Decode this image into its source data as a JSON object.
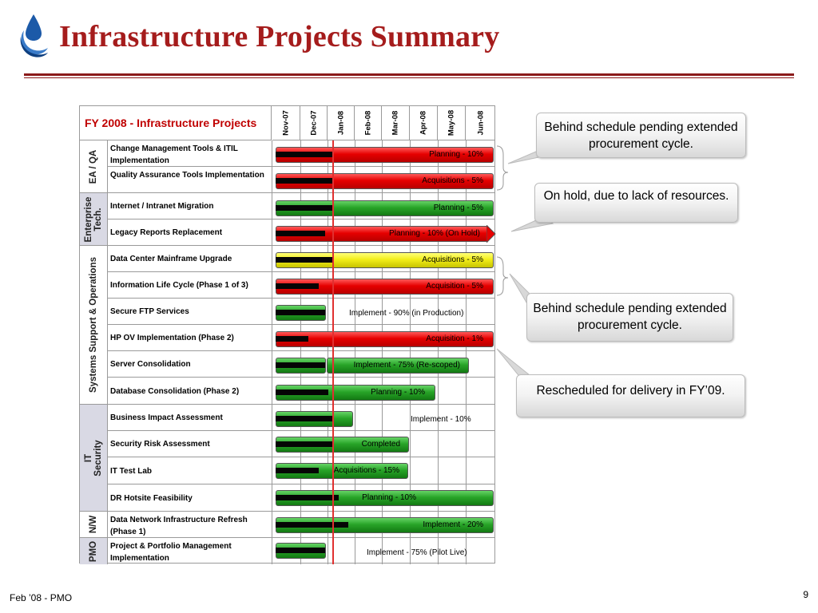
{
  "title": "Infrastructure Projects Summary",
  "table_title": "FY 2008 - Infrastructure Projects",
  "months": [
    "Nov-07",
    "Dec-07",
    "Jan-08",
    "Feb-08",
    "Mar-08",
    "Apr-08",
    "May-08",
    "Jun-08"
  ],
  "groups": [
    {
      "label": "EA / QA"
    },
    {
      "label": "Enterprise\nTech."
    },
    {
      "label": "Systems Support & Operations"
    },
    {
      "label": "IT\nSecurity"
    },
    {
      "label": "N/W"
    },
    {
      "label": "PMO"
    }
  ],
  "projects": [
    {
      "name": "Change Management Tools & ITIL Implementation",
      "status": "Planning - 10%",
      "color": "red"
    },
    {
      "name": "Quality Assurance Tools Implementation",
      "status": "Acquisitions - 5%",
      "color": "red"
    },
    {
      "name": "Internet / Intranet Migration",
      "status": "Planning - 5%",
      "color": "green"
    },
    {
      "name": "Legacy Reports Replacement",
      "status": "Planning - 10% (On Hold)",
      "color": "red"
    },
    {
      "name": "Data Center Mainframe Upgrade",
      "status": "Acquisitions - 5%",
      "color": "yellow"
    },
    {
      "name": "Information Life Cycle (Phase 1 of 3)",
      "status": "Acquisition - 5%",
      "color": "red"
    },
    {
      "name": "Secure FTP Services",
      "status": "Implement - 90% (in Production)",
      "color": "green"
    },
    {
      "name": "HP OV Implementation (Phase 2)",
      "status": "Acquisition - 1%",
      "color": "red"
    },
    {
      "name": "Server Consolidation",
      "status": "Implement - 75% (Re-scoped)",
      "color": "green"
    },
    {
      "name": "Database Consolidation (Phase 2)",
      "status": "Planning - 10%",
      "color": "green"
    },
    {
      "name": "Business Impact Assessment",
      "status": "Implement - 10%",
      "color": "green"
    },
    {
      "name": "Security Risk Assessment",
      "status": "Completed",
      "color": "green"
    },
    {
      "name": "IT Test Lab",
      "status": "Acquisitions - 15%",
      "color": "green"
    },
    {
      "name": "DR Hotsite Feasibility",
      "status": "Planning - 10%",
      "color": "green"
    },
    {
      "name": "Data Network Infrastructure Refresh (Phase 1)",
      "status": "Implement - 20%",
      "color": "green"
    },
    {
      "name": "Project & Portfolio Management Implementation",
      "status": "Implement - 75% (Pilot Live)",
      "color": "green"
    }
  ],
  "callouts": [
    {
      "text": "Behind schedule pending extended procurement cycle."
    },
    {
      "text": "On hold, due to lack of resources."
    },
    {
      "text": "Behind schedule pending extended procurement cycle."
    },
    {
      "text": "Rescheduled for delivery in FY’09."
    }
  ],
  "colors": {
    "title": "#a51c1c",
    "table_title": "#c00000",
    "red_bar": "#e60000",
    "green_bar": "#28a428",
    "yellow_bar": "#f2ee1a",
    "today_line": "#e03030"
  },
  "footer": "Feb ’08 - PMO",
  "page_number": "9"
}
